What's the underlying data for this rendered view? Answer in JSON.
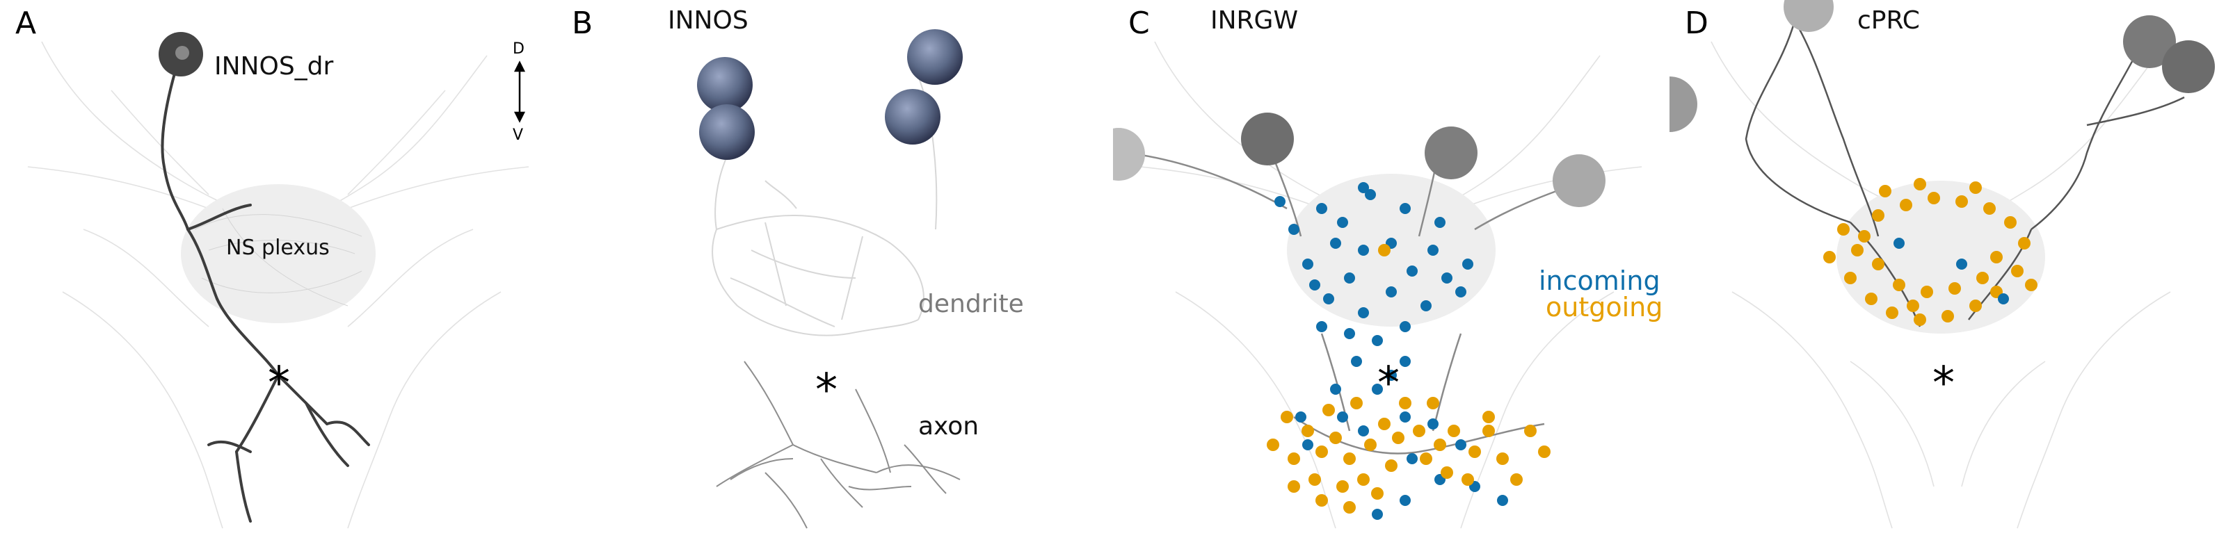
{
  "panels": [
    {
      "letter": "A",
      "title": "INNOS_dr",
      "plexus_label": "NS plexus",
      "asterisk": "*",
      "axis": {
        "top": "D",
        "bottom": "V"
      }
    },
    {
      "letter": "B",
      "title": "INNOS",
      "dendrite_label": "dendrite",
      "axon_label": "axon",
      "asterisk": "*"
    },
    {
      "letter": "C",
      "title": "INRGW",
      "incoming_label": "incoming",
      "outgoing_label": "outgoing",
      "asterisk": "*"
    },
    {
      "letter": "D",
      "title": "cPRC",
      "asterisk": "*"
    }
  ],
  "colors": {
    "incoming": "#0f6fab",
    "outgoing": "#e69f00",
    "dendrite_text": "#7a7a7a",
    "background_neurons": "#dcdcdc",
    "highlight_neuron": "#4a4a4a",
    "soma_blue": "#5c6a88"
  }
}
